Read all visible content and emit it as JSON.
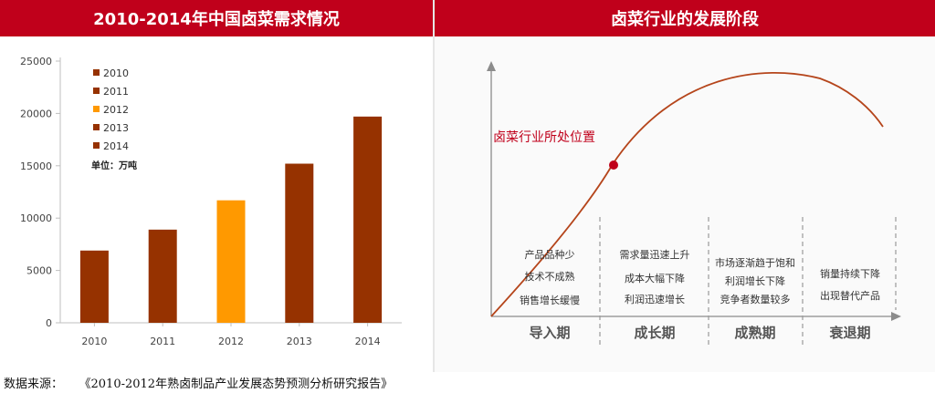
{
  "left_title": "2010-2014年中国卤菜需求情况",
  "right_title": "卤菜行业的发展阶段",
  "source": {
    "label": "数据来源：",
    "text": "《2010-2012年熟卤制品产业发展态势预测分析研究报告》"
  },
  "chart_data": [
    {
      "type": "bar",
      "title": "2010-2014年中国卤菜需求情况",
      "categories": [
        "2010",
        "2011",
        "2012",
        "2013",
        "2014"
      ],
      "values": [
        6900,
        8900,
        11700,
        15200,
        19700
      ],
      "unit_label": "单位：万吨",
      "ylim": [
        0,
        25000
      ],
      "yticks": [
        0,
        5000,
        10000,
        15000,
        20000,
        25000
      ],
      "legend": [
        "2010",
        "2011",
        "2012",
        "2013",
        "2014"
      ],
      "legend_position": "top-left",
      "colors": [
        "#963200",
        "#963200",
        "#ff9900",
        "#963200",
        "#963200"
      ],
      "grid": false
    },
    {
      "type": "line",
      "title": "卤菜行业的发展阶段",
      "curve_label": "卤菜行业所处位置",
      "stages": [
        {
          "name": "导入期",
          "notes": [
            "产品品种少",
            "技术不成熟",
            "销售增长缓慢"
          ]
        },
        {
          "name": "成长期",
          "notes": [
            "需求量迅速上升",
            "成本大幅下降",
            "利润迅速增长"
          ]
        },
        {
          "name": "成熟期",
          "notes": [
            "市场逐渐趋于饱和",
            "利润增长下降",
            "竞争者数量较多"
          ]
        },
        {
          "name": "衰退期",
          "notes": [
            "销量持续下降",
            "出现替代产品"
          ]
        }
      ],
      "colors": {
        "curve": "#b5451b",
        "marker": "#c0001b",
        "label": "#c0001b",
        "axis": "#8c8c8c"
      }
    }
  ]
}
